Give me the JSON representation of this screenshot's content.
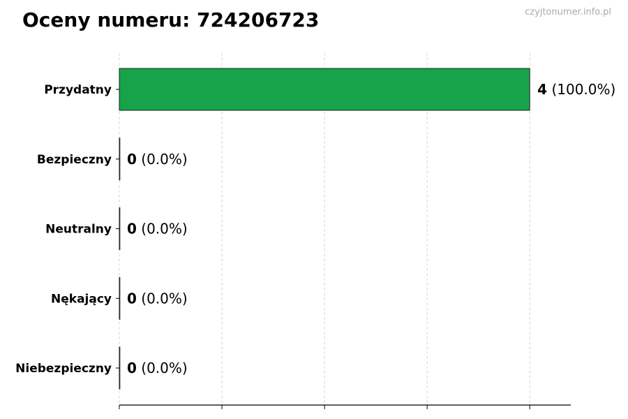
{
  "chart_data": {
    "type": "bar",
    "orientation": "horizontal",
    "title": "Oceny numeru: 724206723",
    "watermark": "czyjtonumer.info.pl",
    "categories": [
      "Przydatny",
      "Bezpieczny",
      "Neutralny",
      "Nękający",
      "Niebezpieczny"
    ],
    "values": [
      4,
      0,
      0,
      0,
      0
    ],
    "labels": [
      {
        "count": "4",
        "pct": "(100.0%)"
      },
      {
        "count": "0",
        "pct": "(0.0%)"
      },
      {
        "count": "0",
        "pct": "(0.0%)"
      },
      {
        "count": "0",
        "pct": "(0.0%)"
      },
      {
        "count": "0",
        "pct": "(0.0%)"
      }
    ],
    "xlim": [
      0,
      4.4
    ],
    "xticks": [
      0,
      1,
      2,
      3,
      4
    ],
    "xtick_labels_shown": false,
    "grid": "x dashed",
    "bar_color": "#16a34a",
    "xlabel": "",
    "ylabel": ""
  }
}
